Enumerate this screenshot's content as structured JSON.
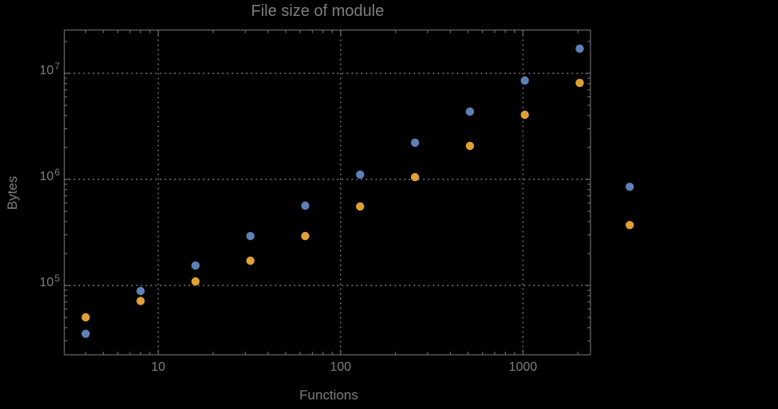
{
  "window": {
    "background": "#000000"
  },
  "chart_data": {
    "type": "scatter",
    "title": "File size of module",
    "xlabel": "Functions",
    "ylabel": "Bytes",
    "log_x": true,
    "log_y": true,
    "x_log_range": [
      0.4845,
      3.3703
    ],
    "y_log_range": [
      4.346,
      7.408
    ],
    "grid": "dotted gridlines at decades only, frame ticks on all four sides",
    "legend": "none",
    "x": [
      4,
      8,
      16,
      32,
      64,
      128,
      256,
      512,
      1024,
      2048,
      3850
    ],
    "series": [
      {
        "name": "series-blue",
        "color": "#5E81B5",
        "values": [
          35000,
          88600,
          154000,
          292000,
          565000,
          1110000,
          2220000,
          4360000,
          8560000,
          17100000,
          851000
        ]
      },
      {
        "name": "series-orange",
        "color": "#E1A035",
        "values": [
          50000,
          71300,
          109000,
          171000,
          292000,
          555000,
          1050000,
          2070000,
          4060000,
          8130000,
          371000
        ]
      }
    ],
    "x_ticks": [
      {
        "value": 10,
        "label": "10"
      },
      {
        "value": 100,
        "label": "100"
      },
      {
        "value": 1000,
        "label": "1000"
      }
    ],
    "y_ticks": [
      {
        "value": 100000,
        "base": "10",
        "exponent": "5"
      },
      {
        "value": 1000000,
        "base": "10",
        "exponent": "6"
      },
      {
        "value": 10000000,
        "base": "10",
        "exponent": "7"
      }
    ],
    "colors": {
      "frame": "#696969",
      "grid": "#767676",
      "tick": "#696969",
      "text": "#7E7E7E"
    },
    "marker_diameter": 10.4
  }
}
